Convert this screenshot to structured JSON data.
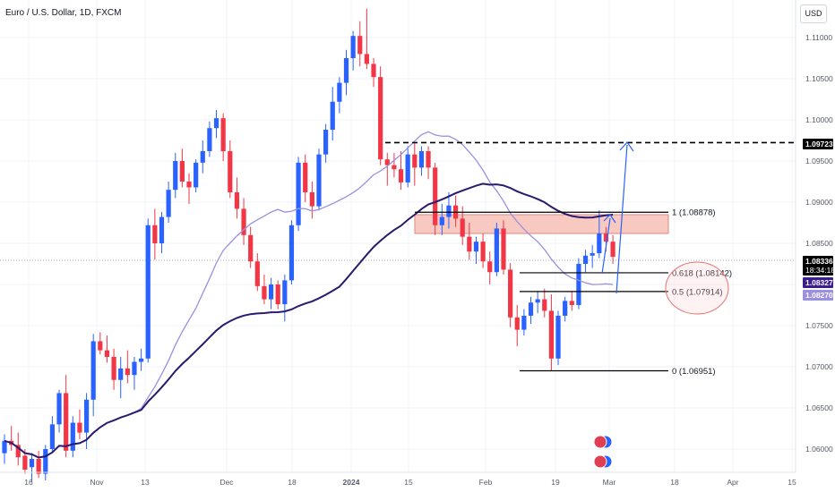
{
  "header": {
    "symbol_title": "Euro / U.S. Dollar, 1D, FXCM",
    "currency": "USD"
  },
  "price_axis": {
    "ticks": [
      {
        "label": "1.11000",
        "value": 1.11
      },
      {
        "label": "1.10500",
        "value": 1.105
      },
      {
        "label": "1.10000",
        "value": 1.1
      },
      {
        "label": "1.09500",
        "value": 1.095
      },
      {
        "label": "1.09000",
        "value": 1.09
      },
      {
        "label": "1.08500",
        "value": 1.085
      },
      {
        "label": "1.08000",
        "value": 1.08
      },
      {
        "label": "1.07500",
        "value": 1.075
      },
      {
        "label": "1.07000",
        "value": 1.07
      },
      {
        "label": "1.06500",
        "value": 1.065
      },
      {
        "label": "1.06000",
        "value": 1.06
      }
    ]
  },
  "time_axis": {
    "ticks": [
      {
        "label": "16",
        "bold": false
      },
      {
        "label": "Nov",
        "bold": false
      },
      {
        "label": "13",
        "bold": false
      },
      {
        "label": "Dec",
        "bold": false
      },
      {
        "label": "18",
        "bold": false
      },
      {
        "label": "2024",
        "bold": true
      },
      {
        "label": "15",
        "bold": false
      },
      {
        "label": "Feb",
        "bold": false
      },
      {
        "label": "19",
        "bold": false
      },
      {
        "label": "Mar",
        "bold": false
      },
      {
        "label": "18",
        "bold": false
      },
      {
        "label": "Apr",
        "bold": false
      },
      {
        "label": "15",
        "bold": false
      }
    ]
  },
  "price_badges": [
    {
      "id": "target",
      "label": "1.09723",
      "bg": "#000000",
      "fg": "#ffffff"
    },
    {
      "id": "last",
      "label": "1.08336",
      "sub": "18:34:18",
      "bg": "#000000",
      "fg": "#ffffff"
    },
    {
      "id": "ma-slow",
      "label": "1.08327",
      "bg": "#3b1e8c",
      "fg": "#ffffff"
    },
    {
      "id": "ma-fast",
      "label": "1.08270",
      "bg": "#9b8fe0",
      "fg": "#ffffff"
    }
  ],
  "fib_levels": [
    {
      "label": "1 (1.08878)",
      "value": 1.08878
    },
    {
      "label": "0.618 (1.08142)",
      "value": 1.08142
    },
    {
      "label": "0.5 (1.07914)",
      "value": 1.07914
    },
    {
      "label": "0 (1.06951)",
      "value": 1.06951
    }
  ],
  "target_level": 1.09723,
  "colors": {
    "up": "#2962ff",
    "down": "#f23645",
    "ma_fast": "#9b8fe0",
    "ma_slow": "#2a1a6e",
    "zone": "#f7c9c0",
    "arrow": "#2962ff",
    "circle": "#e57373"
  },
  "chart_data": {
    "type": "candlestick",
    "title": "Euro / U.S. Dollar, 1D, FXCM",
    "ylim": [
      1.0585,
      1.1155
    ],
    "candles": [
      [
        1.0595,
        1.0618,
        1.0582,
        1.061
      ],
      [
        1.061,
        1.0628,
        1.0598,
        1.0605
      ],
      [
        1.0605,
        1.062,
        1.058,
        1.059
      ],
      [
        1.0592,
        1.06,
        1.057,
        1.0575
      ],
      [
        1.0578,
        1.0595,
        1.056,
        1.0588
      ],
      [
        1.0588,
        1.0598,
        1.0565,
        1.057
      ],
      [
        1.057,
        1.0605,
        1.0562,
        1.06
      ],
      [
        1.06,
        1.064,
        1.0595,
        1.063
      ],
      [
        1.063,
        1.0672,
        1.062,
        1.0668
      ],
      [
        1.0668,
        1.069,
        1.059,
        1.0598
      ],
      [
        1.0598,
        1.064,
        1.059,
        1.0632
      ],
      [
        1.0632,
        1.0648,
        1.0612,
        1.062
      ],
      [
        1.062,
        1.0668,
        1.06,
        1.066
      ],
      [
        1.066,
        1.074,
        1.064,
        1.0731
      ],
      [
        1.0731,
        1.0742,
        1.0715,
        1.072
      ],
      [
        1.072,
        1.0738,
        1.0705,
        1.0712
      ],
      [
        1.0712,
        1.0722,
        1.0672,
        1.0684
      ],
      [
        1.0684,
        1.0712,
        1.0662,
        1.0698
      ],
      [
        1.0698,
        1.072,
        1.068,
        1.069
      ],
      [
        1.069,
        1.0712,
        1.0672,
        1.0706
      ],
      [
        1.0706,
        1.0722,
        1.0695,
        1.071
      ],
      [
        1.071,
        1.088,
        1.0705,
        1.0872
      ],
      [
        1.0872,
        1.0892,
        1.083,
        1.085
      ],
      [
        1.085,
        1.0888,
        1.0838,
        1.0882
      ],
      [
        1.0882,
        1.0925,
        1.0875,
        1.0915
      ],
      [
        1.0915,
        1.096,
        1.0905,
        1.095
      ],
      [
        1.095,
        1.0965,
        1.0918,
        1.0925
      ],
      [
        1.0925,
        1.0935,
        1.0898,
        1.0918
      ],
      [
        1.0918,
        1.0952,
        1.0912,
        1.0948
      ],
      [
        1.0948,
        1.0975,
        1.0935,
        1.0962
      ],
      [
        1.0962,
        1.0998,
        1.0955,
        1.099
      ],
      [
        1.099,
        1.1012,
        1.0978,
        1.1002
      ],
      [
        1.1002,
        1.1008,
        1.095,
        1.0962
      ],
      [
        1.0962,
        1.0975,
        1.0905,
        1.0912
      ],
      [
        1.0912,
        1.093,
        1.088,
        1.0892
      ],
      [
        1.0892,
        1.0905,
        1.0848,
        1.086
      ],
      [
        1.086,
        1.087,
        1.082,
        1.0828
      ],
      [
        1.0828,
        1.0838,
        1.0792,
        1.0798
      ],
      [
        1.0798,
        1.0812,
        1.0776,
        1.0782
      ],
      [
        1.0782,
        1.0808,
        1.077,
        1.08
      ],
      [
        1.08,
        1.0805,
        1.077,
        1.0776
      ],
      [
        1.0776,
        1.0812,
        1.0755,
        1.0805
      ],
      [
        1.0805,
        1.0878,
        1.08,
        1.0872
      ],
      [
        1.0872,
        1.0955,
        1.0865,
        1.0948
      ],
      [
        1.0948,
        1.0958,
        1.09,
        1.0912
      ],
      [
        1.0912,
        1.0925,
        1.088,
        1.0895
      ],
      [
        1.0895,
        1.0965,
        1.089,
        1.0958
      ],
      [
        1.0958,
        1.0995,
        1.0948,
        1.0988
      ],
      [
        1.0988,
        1.104,
        1.0975,
        1.1022
      ],
      [
        1.1022,
        1.1052,
        1.1008,
        1.1045
      ],
      [
        1.1045,
        1.1085,
        1.103,
        1.1075
      ],
      [
        1.1075,
        1.1108,
        1.106,
        1.1102
      ],
      [
        1.1102,
        1.112,
        1.1065,
        1.108
      ],
      [
        1.108,
        1.1135,
        1.1062,
        1.1068
      ],
      [
        1.1068,
        1.1075,
        1.104,
        1.1052
      ],
      [
        1.1052,
        1.1065,
        1.0945,
        1.0952
      ],
      [
        1.0952,
        1.096,
        1.092,
        1.0945
      ],
      [
        1.0945,
        1.096,
        1.093,
        1.094
      ],
      [
        1.094,
        1.0962,
        1.0915,
        1.0924
      ],
      [
        1.0924,
        1.0968,
        1.0918,
        1.0958
      ],
      [
        1.0958,
        1.0972,
        1.092,
        1.0942
      ],
      [
        1.0942,
        1.0968,
        1.0932,
        1.0962
      ],
      [
        1.0962,
        1.0968,
        1.0928,
        1.0942
      ],
      [
        1.0942,
        1.0948,
        1.086,
        1.0872
      ],
      [
        1.0872,
        1.0898,
        1.086,
        1.0882
      ],
      [
        1.0882,
        1.0912,
        1.0868,
        1.0896
      ],
      [
        1.0896,
        1.0908,
        1.087,
        1.088
      ],
      [
        1.088,
        1.0895,
        1.0848,
        1.0858
      ],
      [
        1.0858,
        1.0875,
        1.083,
        1.084
      ],
      [
        1.084,
        1.0858,
        1.0825,
        1.0852
      ],
      [
        1.0852,
        1.0862,
        1.082,
        1.0828
      ],
      [
        1.0828,
        1.084,
        1.08,
        1.0815
      ],
      [
        1.0815,
        1.0875,
        1.081,
        1.0868
      ],
      [
        1.0868,
        1.0878,
        1.0812,
        1.0818
      ],
      [
        1.0818,
        1.0826,
        1.0748,
        1.076
      ],
      [
        1.076,
        1.0775,
        1.0725,
        1.0745
      ],
      [
        1.0745,
        1.077,
        1.0738,
        1.0762
      ],
      [
        1.0762,
        1.0785,
        1.0752,
        1.0778
      ],
      [
        1.0778,
        1.0792,
        1.0765,
        1.0782
      ],
      [
        1.0782,
        1.0795,
        1.076,
        1.0768
      ],
      [
        1.0768,
        1.0788,
        1.0695,
        1.071
      ],
      [
        1.071,
        1.0768,
        1.0702,
        1.0762
      ],
      [
        1.0762,
        1.0785,
        1.0755,
        1.078
      ],
      [
        1.078,
        1.0792,
        1.0768,
        1.0775
      ],
      [
        1.0775,
        1.0832,
        1.077,
        1.0825
      ],
      [
        1.0825,
        1.0842,
        1.0815,
        1.0835
      ],
      [
        1.0835,
        1.0848,
        1.082,
        1.0838
      ],
      [
        1.0838,
        1.089,
        1.0832,
        1.0862
      ],
      [
        1.0862,
        1.087,
        1.084,
        1.0852
      ],
      [
        1.0852,
        1.086,
        1.0825,
        1.08336
      ]
    ]
  }
}
